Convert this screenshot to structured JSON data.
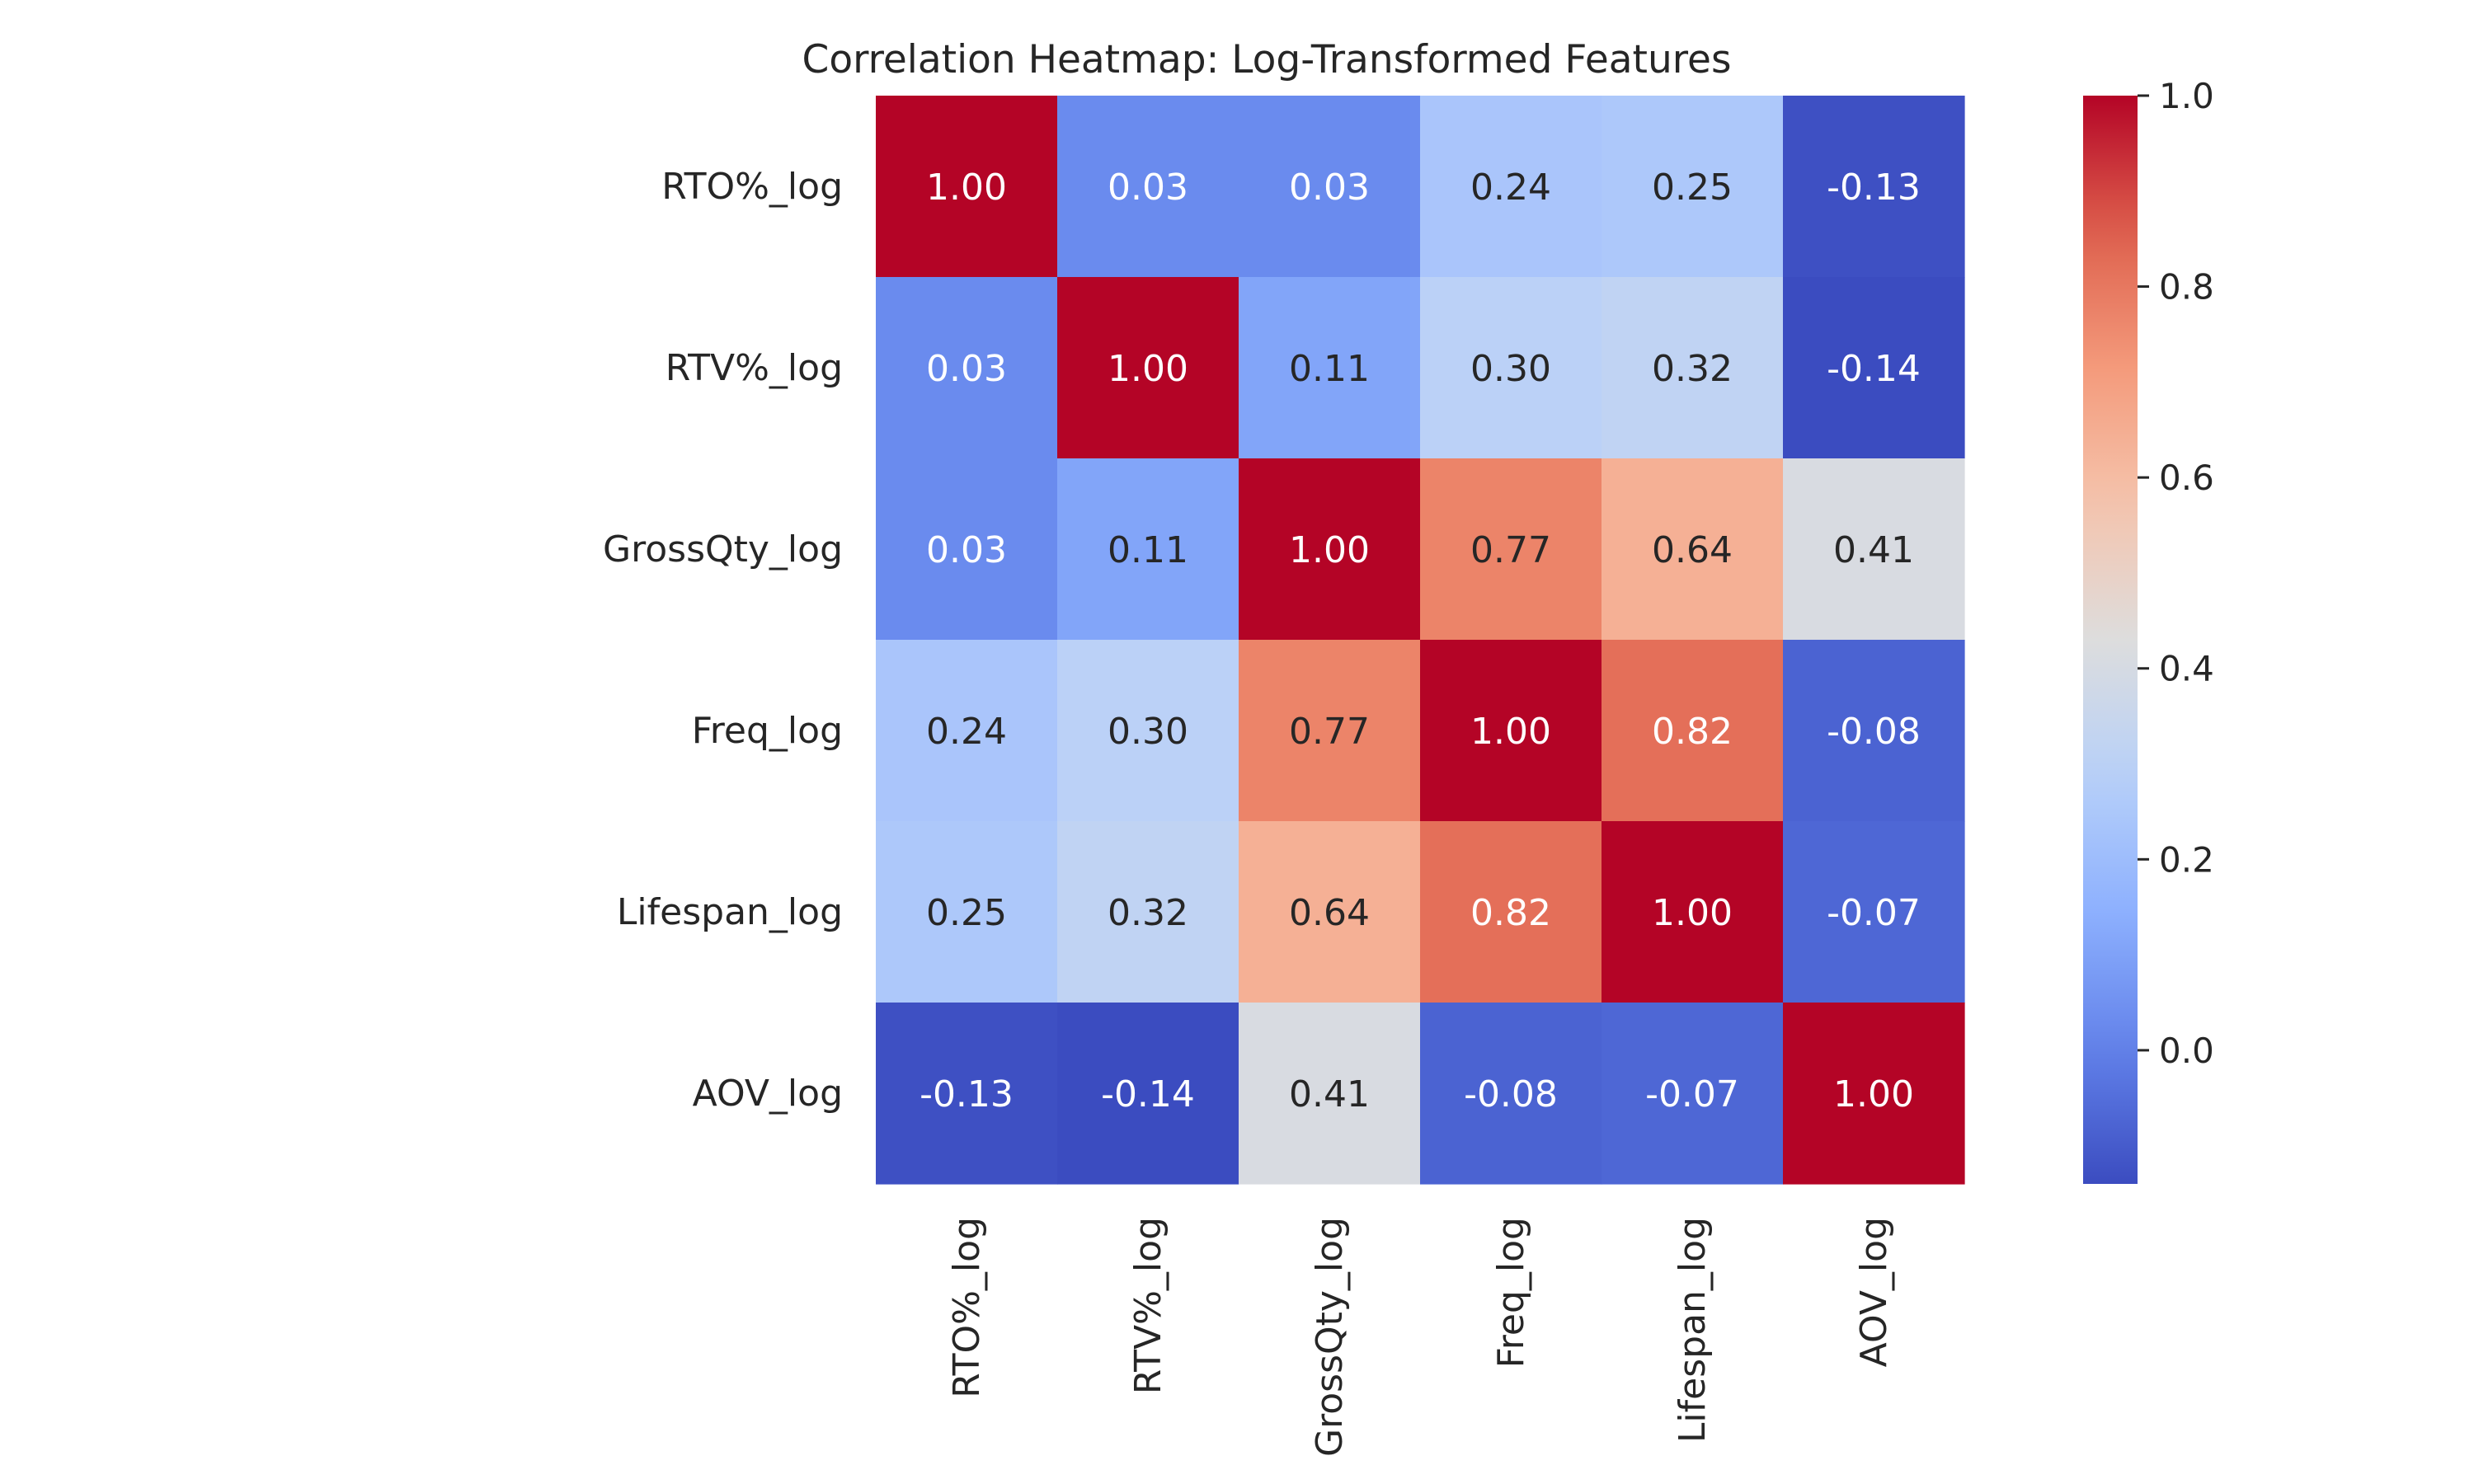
{
  "chart_data": {
    "type": "heatmap",
    "title": "Correlation Heatmap: Log-Transformed Features",
    "rows": [
      "RTO%_log",
      "RTV%_log",
      "GrossQty_log",
      "Freq_log",
      "Lifespan_log",
      "AOV_log"
    ],
    "columns": [
      "RTO%_log",
      "RTV%_log",
      "GrossQty_log",
      "Freq_log",
      "Lifespan_log",
      "AOV_log"
    ],
    "values": [
      [
        1.0,
        0.03,
        0.03,
        0.24,
        0.25,
        -0.13
      ],
      [
        0.03,
        1.0,
        0.11,
        0.3,
        0.32,
        -0.14
      ],
      [
        0.03,
        0.11,
        1.0,
        0.77,
        0.64,
        0.41
      ],
      [
        0.24,
        0.3,
        0.77,
        1.0,
        0.82,
        -0.08
      ],
      [
        0.25,
        0.32,
        0.64,
        0.82,
        1.0,
        -0.07
      ],
      [
        -0.13,
        -0.14,
        0.41,
        -0.08,
        -0.07,
        1.0
      ]
    ],
    "value_labels": [
      [
        "1.00",
        "0.03",
        "0.03",
        "0.24",
        "0.25",
        "-0.13"
      ],
      [
        "0.03",
        "1.00",
        "0.11",
        "0.30",
        "0.32",
        "-0.14"
      ],
      [
        "0.03",
        "0.11",
        "1.00",
        "0.77",
        "0.64",
        "0.41"
      ],
      [
        "0.24",
        "0.30",
        "0.77",
        "1.00",
        "0.82",
        "-0.08"
      ],
      [
        "0.25",
        "0.32",
        "0.64",
        "0.82",
        "1.00",
        "-0.07"
      ],
      [
        "-0.13",
        "-0.14",
        "0.41",
        "-0.08",
        "-0.07",
        "1.00"
      ]
    ],
    "colormap": "coolwarm",
    "vmin": -0.14,
    "vmax": 1.0,
    "colorbar": {
      "ticks": [
        0.0,
        0.2,
        0.4,
        0.6,
        0.8,
        1.0
      ],
      "tick_labels": [
        "0.0",
        "0.2",
        "0.4",
        "0.6",
        "0.8",
        "1.0"
      ],
      "placement": "right"
    },
    "xlabel": "",
    "ylabel": "",
    "x_tick_rotation": "vertical"
  }
}
